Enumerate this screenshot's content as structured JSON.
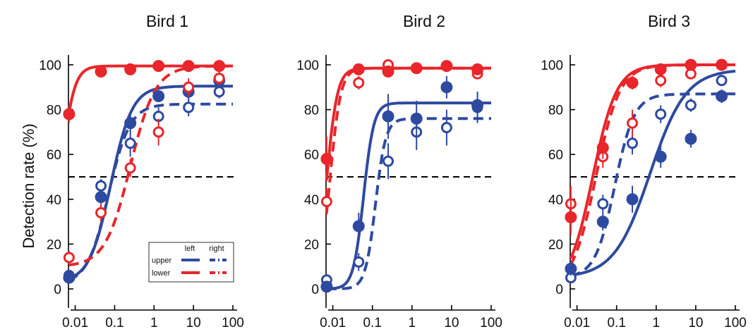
{
  "colors": {
    "upper": "#2e4aa0",
    "lower": "#e8262b",
    "axis": "#000000",
    "threshold": "#000000"
  },
  "chart_data": {
    "type": "scatter",
    "layout": "three panels side by side",
    "shared": {
      "ylabel": "Detection rate (%)",
      "xscale": "log",
      "xlim": [
        0.004,
        100
      ],
      "ylim": [
        -10,
        100
      ],
      "xticks": [
        "0.01",
        "0.1",
        "1",
        "10",
        "100"
      ],
      "yticks": [
        "0",
        "20",
        "40",
        "60",
        "80",
        "100"
      ],
      "threshold": 50,
      "x": [
        0.007,
        0.045,
        0.25,
        1.3,
        7.5,
        45
      ],
      "legend": {
        "placement": "inside-bottom-right of first panel",
        "columns": [
          "left",
          "right"
        ],
        "rows": [
          "upper",
          "lower"
        ]
      }
    },
    "panels": [
      {
        "title": "Bird 1",
        "series": [
          {
            "key": "upper_left",
            "filled": true,
            "y": [
              5,
              41,
              74,
              86,
              88,
              93
            ],
            "err": [
              1.5,
              3,
              4,
              2,
              4,
              3
            ],
            "fit": {
              "min": 3,
              "max": 90.5,
              "x50": 0.08,
              "slope": 1.0
            },
            "dashed": false
          },
          {
            "key": "upper_right",
            "filled": false,
            "y": [
              6,
              46,
              65,
              77,
              81,
              88
            ],
            "err": [
              1.5,
              3,
              6,
              4,
              4,
              3
            ],
            "fit": {
              "min": 2,
              "max": 82.5,
              "x50": 0.07,
              "slope": 1.0
            },
            "dashed": true
          },
          {
            "key": "lower_left",
            "filled": true,
            "y": [
              78,
              97,
              98,
              99.5,
              99.5,
              99.5
            ],
            "err": [
              4,
              1.5,
              1,
              0.5,
              0.5,
              0.5
            ],
            "fit": {
              "min": 10,
              "max": 99.5,
              "x50": 0.0045,
              "slope": 1.7
            },
            "dashed": false
          },
          {
            "key": "lower_right",
            "filled": false,
            "y": [
              14,
              34,
              54,
              70,
              90,
              94
            ],
            "err": [
              3,
              4,
              4,
              6,
              4,
              3
            ],
            "fit": {
              "min": 10,
              "max": 99.5,
              "x50": 0.25,
              "slope": 0.85
            },
            "dashed": true
          }
        ]
      },
      {
        "title": "Bird 2",
        "series": [
          {
            "key": "upper_left",
            "filled": true,
            "y": [
              1,
              28,
              77,
              76,
              90,
              82
            ],
            "err": [
              1,
              6,
              10,
              8,
              5,
              6
            ],
            "fit": {
              "min": 0,
              "max": 83,
              "x50": 0.06,
              "slope": 2.1
            },
            "dashed": false
          },
          {
            "key": "upper_right",
            "filled": false,
            "y": [
              4,
              12,
              57,
              70,
              72,
              81
            ],
            "err": [
              2,
              4,
              8,
              8,
              8,
              7
            ],
            "fit": {
              "min": 0,
              "max": 76,
              "x50": 0.12,
              "slope": 2.1
            },
            "dashed": true
          },
          {
            "key": "lower_left",
            "filled": true,
            "y": [
              58,
              98,
              97,
              98.5,
              99.5,
              98
            ],
            "err": [
              10,
              1.5,
              2,
              1,
              0.5,
              1
            ],
            "fit": {
              "min": 0,
              "max": 98.5,
              "x50": 0.007,
              "slope": 2.0
            },
            "dashed": false
          },
          {
            "key": "lower_right",
            "filled": false,
            "y": [
              39,
              92,
              100,
              98.5,
              99.5,
              96
            ],
            "err": [
              6,
              3,
              1,
              1,
              0.5,
              2
            ],
            "fit": {
              "min": 0,
              "max": 98.5,
              "x50": 0.0085,
              "slope": 2.0
            },
            "dashed": true
          }
        ]
      },
      {
        "title": "Bird 3",
        "series": [
          {
            "key": "upper_left",
            "filled": true,
            "y": [
              9,
              30,
              40,
              59,
              67,
              86
            ],
            "err": [
              3,
              4,
              6,
              5,
              4,
              3
            ],
            "fit": {
              "min": 5,
              "max": 98,
              "x50": 0.7,
              "slope": 0.6
            },
            "dashed": false
          },
          {
            "key": "upper_right",
            "filled": false,
            "y": [
              5,
              38,
              65,
              78,
              82,
              93
            ],
            "err": [
              2,
              4,
              5,
              4,
              3,
              2
            ],
            "fit": {
              "min": 5,
              "max": 87,
              "x50": 0.09,
              "slope": 1.1
            },
            "dashed": true
          },
          {
            "key": "lower_left",
            "filled": true,
            "y": [
              32,
              63,
              92,
              98,
              100,
              100
            ],
            "err": [
              8,
              5,
              3,
              1.5,
              0.5,
              0.5
            ],
            "fit": {
              "min": 0,
              "max": 100,
              "x50": 0.025,
              "slope": 0.9
            },
            "dashed": false
          },
          {
            "key": "lower_right",
            "filled": false,
            "y": [
              38,
              59,
              74,
              93,
              96,
              100
            ],
            "err": [
              8,
              5,
              6,
              3,
              2,
              0.5
            ],
            "fit": {
              "min": 0,
              "max": 100,
              "x50": 0.03,
              "slope": 0.9
            },
            "dashed": true
          }
        ]
      }
    ]
  }
}
